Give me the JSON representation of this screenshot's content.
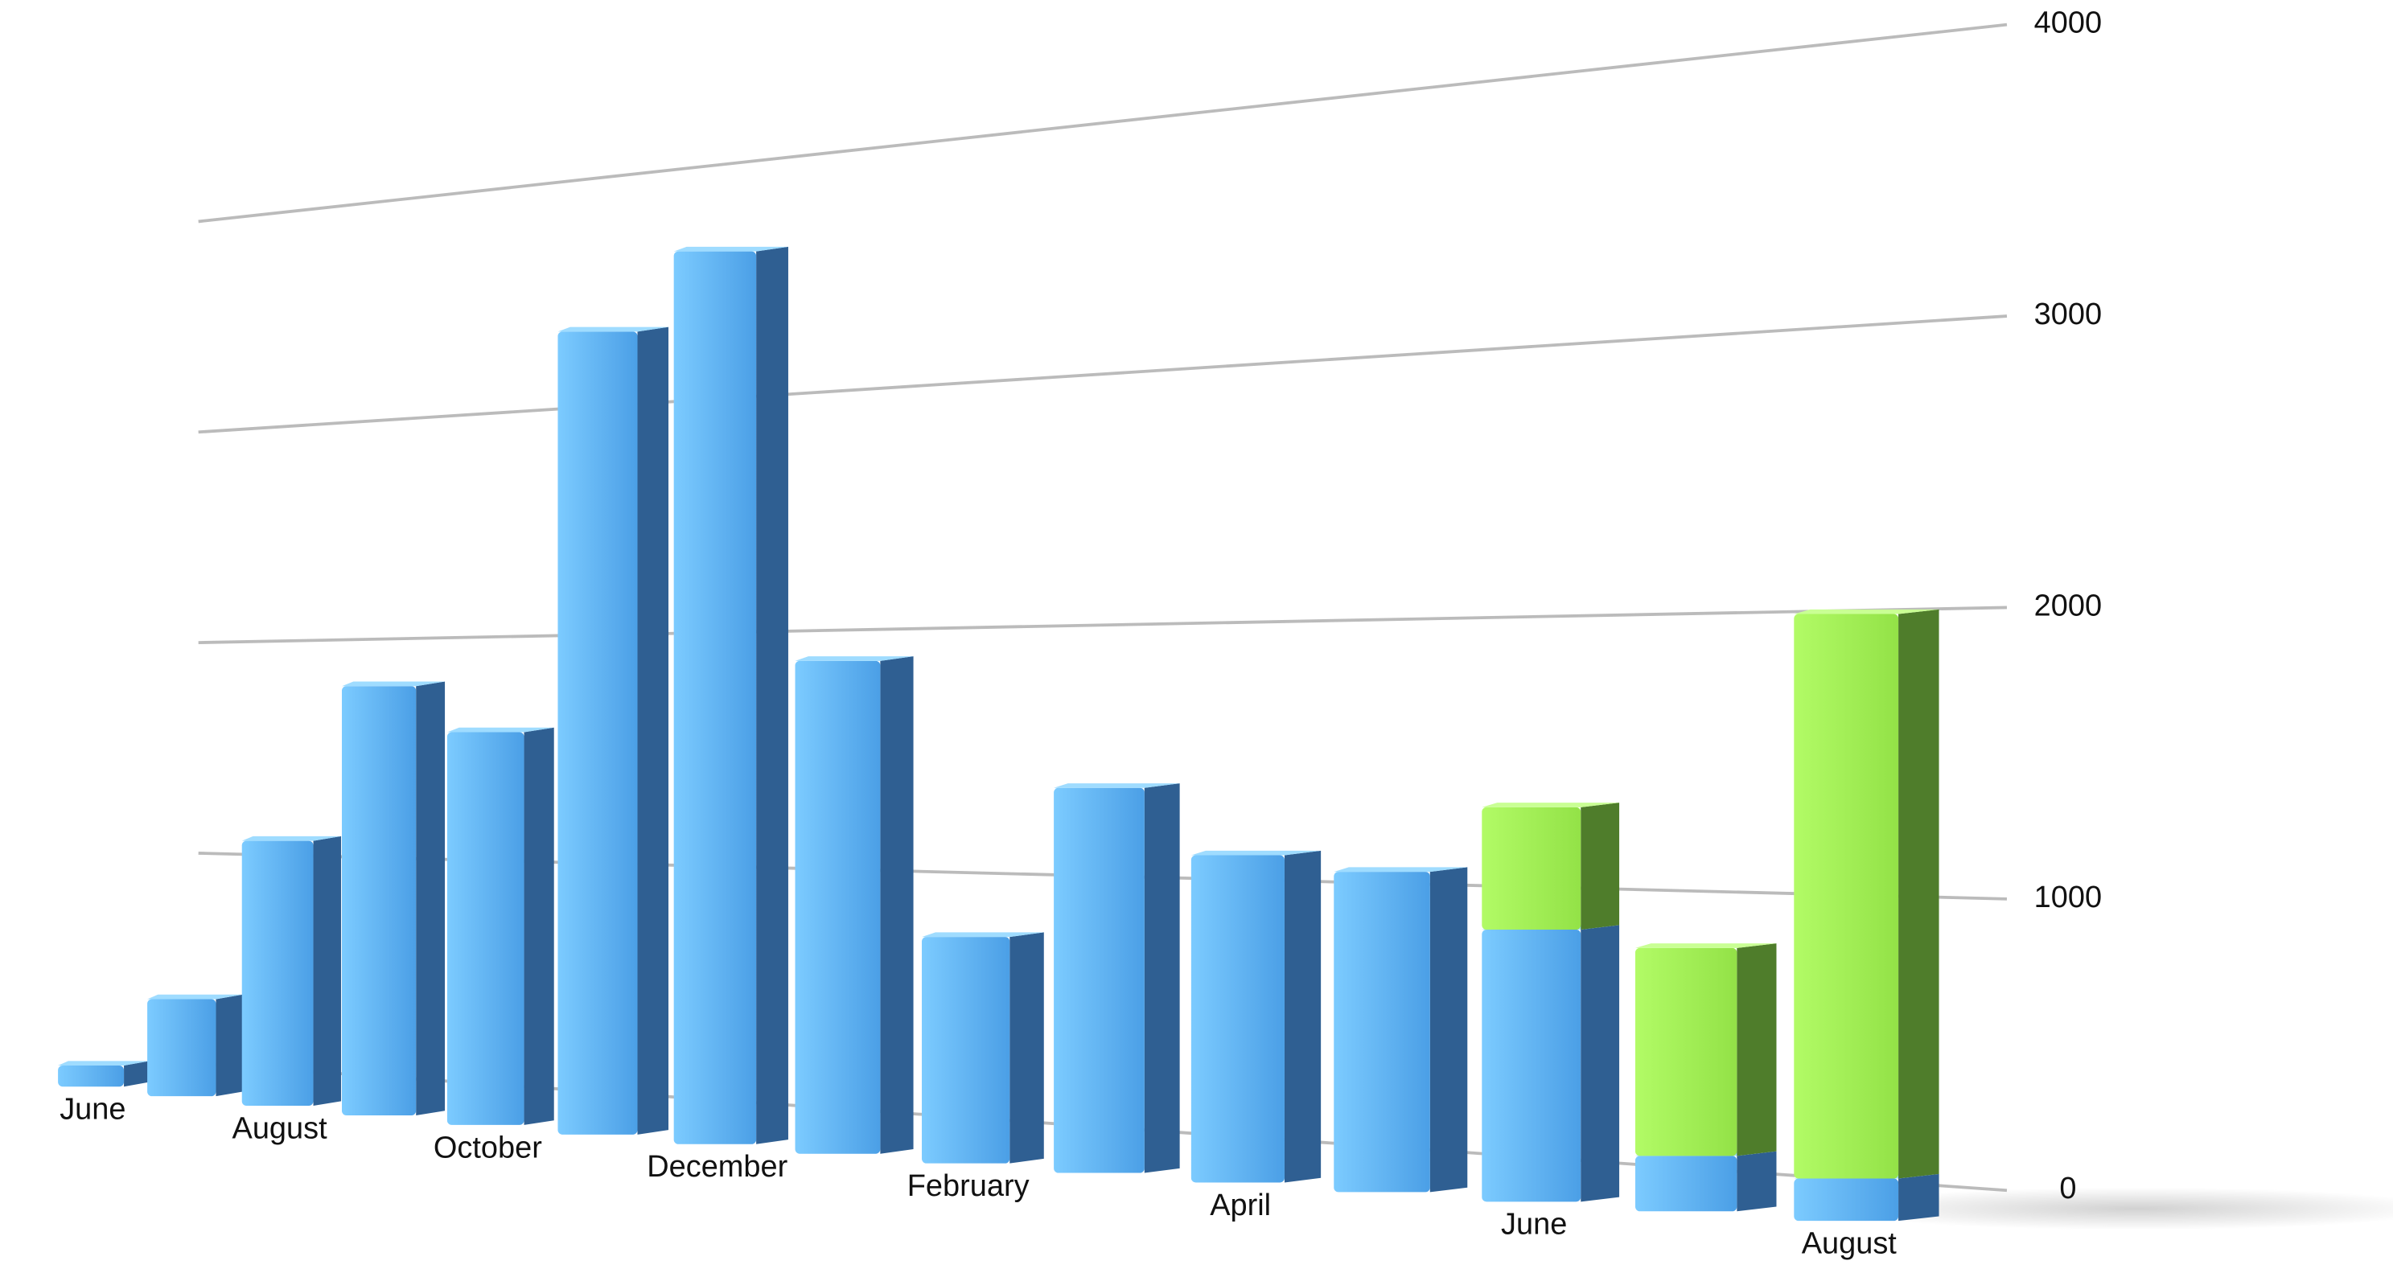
{
  "chart_data": {
    "type": "bar3d",
    "stacked": true,
    "categories": [
      "June",
      null,
      "August",
      null,
      "October",
      null,
      "December",
      null,
      "February",
      null,
      "April",
      null,
      "June",
      null,
      "August"
    ],
    "series": [
      {
        "color": "#5ab4f8",
        "values": [
          100,
          450,
          1200,
          1900,
          1700,
          3400,
          3700,
          2000,
          900,
          1500,
          1250,
          1200,
          1000,
          200,
          150
        ]
      },
      {
        "color": "#a6f55a",
        "values": [
          null,
          null,
          null,
          null,
          null,
          null,
          null,
          null,
          null,
          null,
          null,
          null,
          450,
          750,
          2000
        ]
      }
    ],
    "ylim": [
      0,
      4000
    ],
    "yticks": [
      0,
      1000,
      2000,
      3000,
      4000
    ],
    "grid": true
  }
}
